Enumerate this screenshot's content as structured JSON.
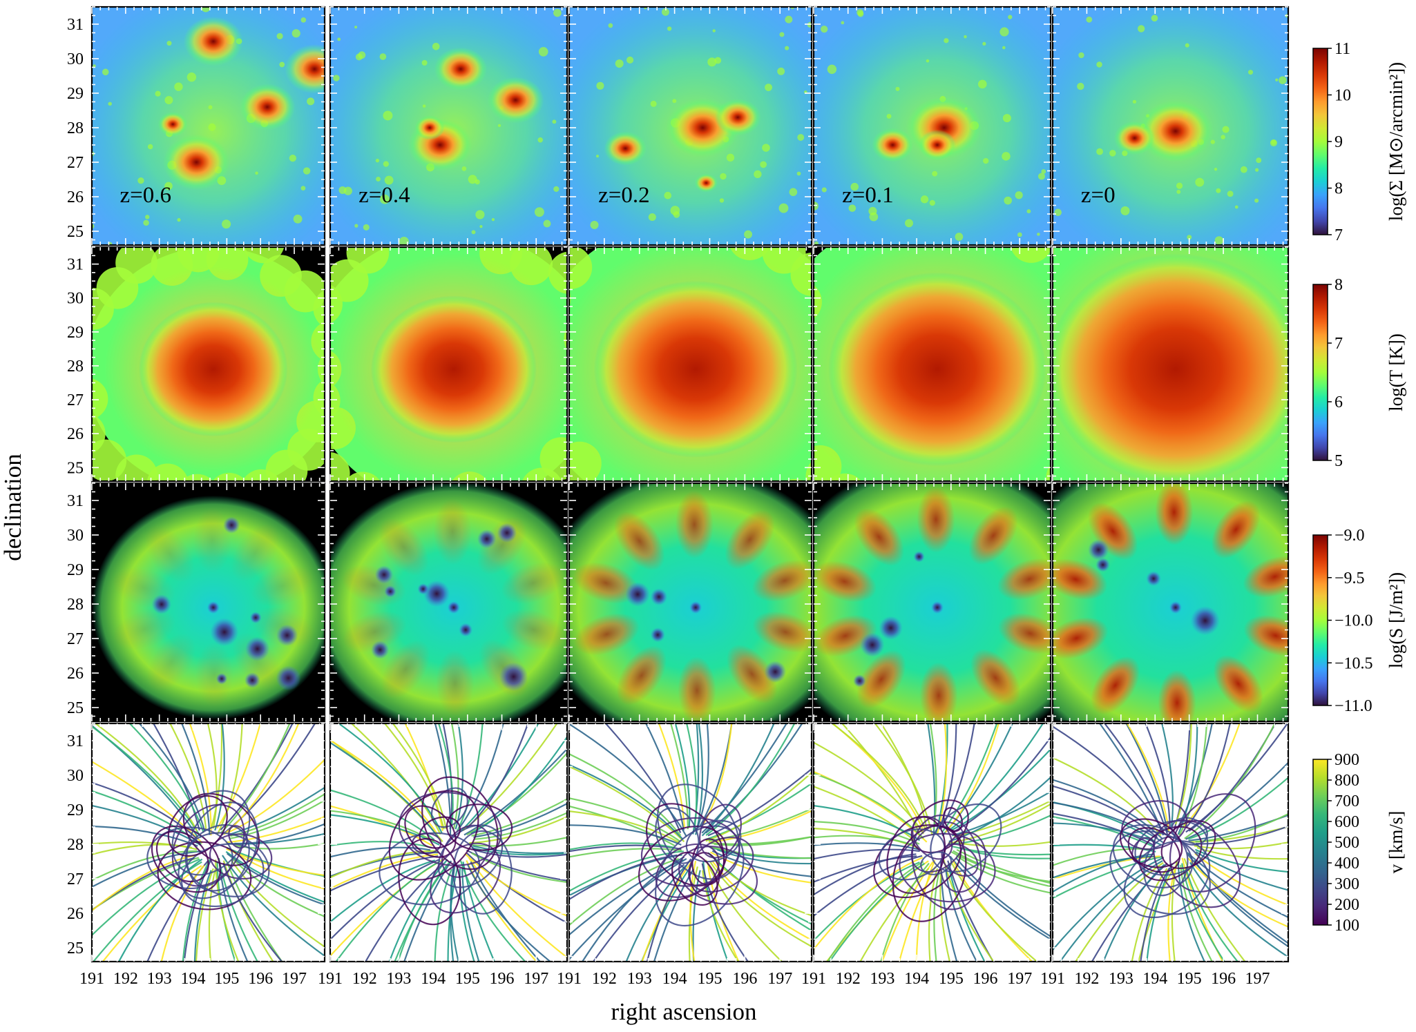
{
  "chart_data": {
    "type": "heatmap",
    "xlabel": "right ascension",
    "ylabel": "declination",
    "xlim": [
      191,
      197.9
    ],
    "ylim": [
      24.6,
      31.5
    ],
    "x_ticks": [
      "191",
      "192",
      "193",
      "194",
      "195",
      "196",
      "197"
    ],
    "y_ticks": [
      "25",
      "26",
      "27",
      "28",
      "29",
      "30",
      "31"
    ],
    "columns": [
      "z=0.6",
      "z=0.4",
      "z=0.2",
      "z=0.1",
      "z=0"
    ],
    "rows": [
      {
        "quantity": "surface-density",
        "colorbar_label": "log(Σ [M⊙/arcmin²])",
        "colormap": "turbo",
        "colorbar_range": [
          7,
          11
        ],
        "colorbar_ticks": [
          "7",
          "8",
          "9",
          "10",
          "11"
        ],
        "background_color": "#5ab4ff"
      },
      {
        "quantity": "temperature",
        "colorbar_label": "log(T [K])",
        "colormap": "turbo",
        "colorbar_range": [
          5,
          8
        ],
        "colorbar_ticks": [
          "5",
          "6",
          "7",
          "8"
        ],
        "background_color": "#000000"
      },
      {
        "quantity": "entropy",
        "colorbar_label": "log(S [J/m²])",
        "colormap": "turbo",
        "colorbar_range": [
          -11.0,
          -9.0
        ],
        "colorbar_ticks": [
          "−11.0",
          "−10.5",
          "−10.0",
          "−9.5",
          "−9.0"
        ],
        "background_color": "#000000"
      },
      {
        "quantity": "velocity-streamlines",
        "colorbar_label": "v [km/s]",
        "colormap": "viridis",
        "colorbar_range": [
          100,
          900
        ],
        "colorbar_ticks": [
          "100",
          "200",
          "300",
          "400",
          "500",
          "600",
          "700",
          "800",
          "900"
        ],
        "background_color": "#ffffff"
      }
    ],
    "blobs_note_units": "positions in RA/Dec data units",
    "surface_density_peaks": [
      [
        [
          194.1,
          27.0,
          0.9
        ],
        [
          194.6,
          30.5,
          0.8
        ],
        [
          196.2,
          28.6,
          0.75
        ],
        [
          197.6,
          29.7,
          0.8
        ],
        [
          193.4,
          28.1,
          0.4
        ]
      ],
      [
        [
          194.2,
          27.5,
          0.85
        ],
        [
          194.8,
          29.7,
          0.7
        ],
        [
          196.4,
          28.8,
          0.75
        ],
        [
          193.9,
          28.0,
          0.4
        ]
      ],
      [
        [
          194.8,
          28.0,
          0.95
        ],
        [
          195.8,
          28.3,
          0.6
        ],
        [
          192.6,
          27.4,
          0.55
        ],
        [
          194.9,
          26.4,
          0.3
        ]
      ],
      [
        [
          194.8,
          28.0,
          1.0
        ],
        [
          193.3,
          27.5,
          0.55
        ],
        [
          194.6,
          27.5,
          0.5
        ]
      ],
      [
        [
          194.6,
          27.9,
          1.0
        ],
        [
          193.4,
          27.7,
          0.55
        ]
      ]
    ]
  }
}
